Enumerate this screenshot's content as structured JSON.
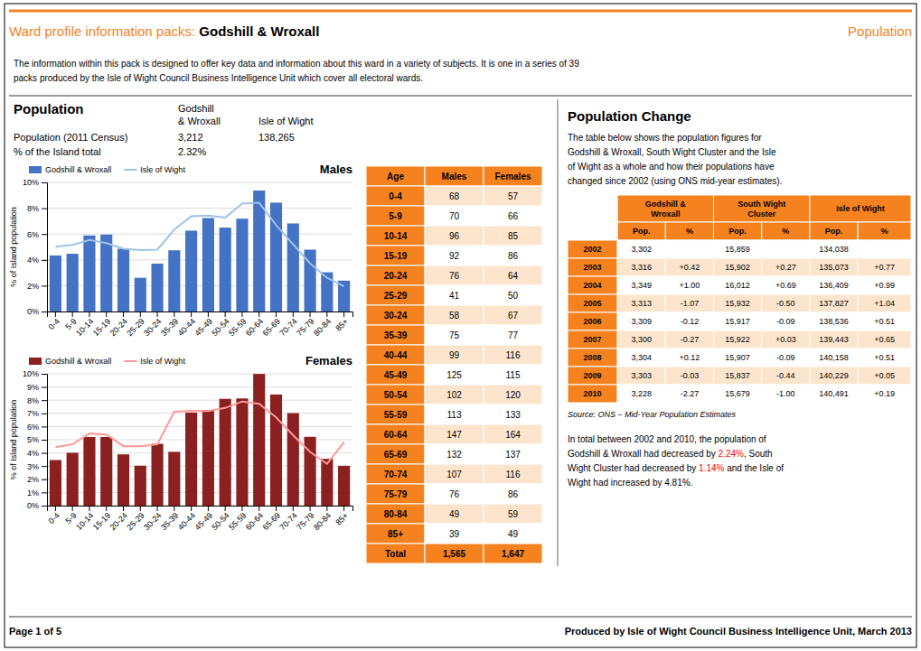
{
  "chart_data": [
    {
      "type": "bar",
      "title": "Males",
      "ylabel": "% of Island population",
      "categories": [
        "0-4",
        "5-9",
        "10-14",
        "15-19",
        "20-24",
        "25-29",
        "30-24",
        "35-39",
        "40-44",
        "45-49",
        "50-54",
        "55-59",
        "60-64",
        "65-69",
        "70-74",
        "75-79",
        "80-84",
        "85+"
      ],
      "series": [
        {
          "name": "Godshill & Wroxall",
          "type": "bar",
          "color": "#4472C4",
          "values": [
            4.34,
            4.47,
            5.89,
            5.96,
            4.86,
            2.61,
            3.71,
            4.74,
            6.26,
            7.24,
            6.5,
            7.19,
            9.37,
            8.43,
            6.82,
            4.79,
            3.04,
            2.39
          ]
        },
        {
          "name": "Isle of Wight",
          "type": "line",
          "color": "#9DC3E6",
          "values": [
            5.02,
            5.16,
            5.54,
            5.3,
            4.86,
            4.76,
            4.79,
            6.34,
            7.38,
            7.43,
            7.27,
            8.35,
            8.42,
            6.69,
            5.21,
            3.73,
            2.61,
            1.95
          ]
        }
      ],
      "ylim": [
        0,
        10
      ],
      "yticks": [
        {
          "value": 0,
          "label": "0%"
        },
        {
          "value": 2,
          "label": "2%"
        },
        {
          "value": 4,
          "label": "4%"
        },
        {
          "value": 6,
          "label": "6%"
        },
        {
          "value": 8,
          "label": "8%"
        },
        {
          "value": 10,
          "label": "10%"
        }
      ],
      "grid": true,
      "legend": "upper left"
    },
    {
      "type": "bar",
      "title": "Females",
      "ylabel": "% of Island population",
      "categories": [
        "0-4",
        "5-9",
        "10-14",
        "15-19",
        "20-24",
        "25-29",
        "30-24",
        "35-39",
        "40-44",
        "45-49",
        "50-54",
        "55-59",
        "60-64",
        "65-69",
        "70-74",
        "75-79",
        "80-84",
        "85+"
      ],
      "series": [
        {
          "name": "Godshill & Wroxall",
          "type": "bar",
          "color": "#8B2020",
          "values": [
            3.46,
            4.01,
            5.21,
            5.21,
            3.89,
            3.03,
            4.69,
            4.08,
            7.06,
            7.26,
            8.1,
            8.13,
            9.99,
            8.43,
            7.02,
            5.22,
            3.55,
            3.02
          ]
        },
        {
          "name": "Isle of Wight",
          "type": "line",
          "color": "#FF9999",
          "values": [
            4.44,
            4.65,
            5.47,
            5.4,
            4.51,
            4.51,
            4.65,
            7.12,
            7.19,
            7.17,
            7.41,
            7.9,
            7.73,
            6.69,
            5.34,
            4.07,
            3.17,
            4.82
          ]
        }
      ],
      "ylim": [
        0,
        10
      ],
      "yticks": [
        {
          "value": 0,
          "label": "0%"
        },
        {
          "value": 1,
          "label": "1%"
        },
        {
          "value": 2,
          "label": "2%"
        },
        {
          "value": 3,
          "label": "3%"
        },
        {
          "value": 4,
          "label": "4%"
        },
        {
          "value": 5,
          "label": "5%"
        },
        {
          "value": 6,
          "label": "6%"
        },
        {
          "value": 7,
          "label": "7%"
        },
        {
          "value": 8,
          "label": "8%"
        },
        {
          "value": 9,
          "label": "9%"
        },
        {
          "value": 10,
          "label": "10%"
        }
      ],
      "grid": true,
      "legend": "upper left"
    }
  ],
  "colors": {
    "accent": "#F5821F",
    "row": "#FCE5CC"
  },
  "header": {
    "prefix": "Ward profile information packs: ",
    "main": "Godshill & Wroxall",
    "right": "Population"
  },
  "intro_text": [
    "The information within this pack is designed to offer key data and information about this ward in a variety of subjects. It is one in a series of 39",
    "packs produced by the Isle of Wight Council Business Intelligence Unit which cover all electoral wards."
  ],
  "population_info": {
    "title": "Population",
    "columns": [
      [
        "Godshill",
        "& Wroxall"
      ],
      [
        "Isle of Wight"
      ]
    ],
    "rows": [
      {
        "label": "Population (2011 Census)",
        "values": [
          {
            "value": 3212,
            "label": "3,212"
          },
          {
            "value": 138265,
            "label": "138,265"
          }
        ]
      },
      {
        "label": "% of the Island total",
        "values": [
          {
            "value": 2.32,
            "label": "2.32%"
          }
        ]
      }
    ]
  },
  "age_table": {
    "columns": [
      "Age",
      "Males",
      "Females"
    ],
    "ages": [
      "0-4",
      "5-9",
      "10-14",
      "15-19",
      "20-24",
      "25-29",
      "30-24",
      "35-39",
      "40-44",
      "45-49",
      "50-54",
      "55-59",
      "60-64",
      "65-69",
      "70-74",
      "75-79",
      "80-84",
      "85+",
      "Total"
    ],
    "males": [
      68,
      70,
      96,
      92,
      76,
      41,
      58,
      75,
      99,
      125,
      102,
      113,
      147,
      132,
      107,
      76,
      49,
      39,
      {
        "value": 1565,
        "label": "1,565"
      }
    ],
    "females": [
      57,
      66,
      85,
      86,
      64,
      50,
      67,
      77,
      116,
      115,
      120,
      133,
      164,
      137,
      116,
      86,
      59,
      49,
      {
        "value": 1647,
        "label": "1,647"
      }
    ]
  },
  "population_change": {
    "title": "Population Change",
    "text": [
      "The table below shows the population figures for",
      "Godshill & Wroxall, South Wight Cluster and the Isle",
      "of Wight as a whole and how their populations have",
      "changed since 2002 (using ONS mid-year estimates)."
    ],
    "groups": [
      [
        "Godshill &",
        "Wroxall"
      ],
      [
        "South Wight",
        "Cluster"
      ],
      [
        "Isle of Wight"
      ]
    ],
    "subheaders": [
      "Pop.",
      "%"
    ],
    "years": [
      "2002",
      "2003",
      "2004",
      "2005",
      "2006",
      "2007",
      "2008",
      "2009",
      "2010"
    ],
    "values": [
      {
        "pop": [
          {
            "value": 3302,
            "label": "3,302"
          },
          {
            "value": 3316,
            "label": "3,316"
          },
          {
            "value": 3349,
            "label": "3,349"
          },
          {
            "value": 3313,
            "label": "3,313"
          },
          {
            "value": 3309,
            "label": "3,309"
          },
          {
            "value": 3300,
            "label": "3,300"
          },
          {
            "value": 3304,
            "label": "3,304"
          },
          {
            "value": 3303,
            "label": "3,303"
          },
          {
            "value": 3228,
            "label": "3,228"
          }
        ],
        "pct": [
          null,
          {
            "value": 0.42,
            "label": "+0.42"
          },
          {
            "value": 1.0,
            "label": "+1.00"
          },
          {
            "value": -1.07,
            "label": "-1.07"
          },
          {
            "value": -0.12,
            "label": "-0.12"
          },
          {
            "value": -0.27,
            "label": "-0.27"
          },
          {
            "value": 0.12,
            "label": "+0.12"
          },
          {
            "value": -0.03,
            "label": "-0.03"
          },
          {
            "value": -2.27,
            "label": "-2.27"
          }
        ]
      },
      {
        "pop": [
          {
            "value": 15859,
            "label": "15,859"
          },
          {
            "value": 15902,
            "label": "15,902"
          },
          {
            "value": 16012,
            "label": "16,012"
          },
          {
            "value": 15932,
            "label": "15,932"
          },
          {
            "value": 15917,
            "label": "15,917"
          },
          {
            "value": 15922,
            "label": "15,922"
          },
          {
            "value": 15907,
            "label": "15,907"
          },
          {
            "value": 15837,
            "label": "15,837"
          },
          {
            "value": 15679,
            "label": "15,679"
          }
        ],
        "pct": [
          null,
          {
            "value": 0.27,
            "label": "+0.27"
          },
          {
            "value": 0.69,
            "label": "+0.69"
          },
          {
            "value": -0.5,
            "label": "-0.50"
          },
          {
            "value": -0.09,
            "label": "-0.09"
          },
          {
            "value": 0.03,
            "label": "+0.03"
          },
          {
            "value": -0.09,
            "label": "-0.09"
          },
          {
            "value": -0.44,
            "label": "-0.44"
          },
          {
            "value": -1.0,
            "label": "-1.00"
          }
        ]
      },
      {
        "pop": [
          {
            "value": 134038,
            "label": "134,038"
          },
          {
            "value": 135073,
            "label": "135,073"
          },
          {
            "value": 136409,
            "label": "136,409"
          },
          {
            "value": 137827,
            "label": "137,827"
          },
          {
            "value": 138536,
            "label": "138,536"
          },
          {
            "value": 139443,
            "label": "139,443"
          },
          {
            "value": 140158,
            "label": "140,158"
          },
          {
            "value": 140229,
            "label": "140,229"
          },
          {
            "value": 140491,
            "label": "140,491"
          }
        ],
        "pct": [
          null,
          {
            "value": 0.77,
            "label": "+0.77"
          },
          {
            "value": 0.99,
            "label": "+0.99"
          },
          {
            "value": 1.04,
            "label": "+1.04"
          },
          {
            "value": 0.51,
            "label": "+0.51"
          },
          {
            "value": 0.65,
            "label": "+0.65"
          },
          {
            "value": 0.51,
            "label": "+0.51"
          },
          {
            "value": 0.05,
            "label": "+0.05"
          },
          {
            "value": 0.19,
            "label": "+0.19"
          }
        ]
      }
    ],
    "source": "Source: ONS – Mid-Year Population Estimates",
    "summary": [
      [
        {
          "text": "In total between 2002 and 2010, the population of"
        }
      ],
      [
        {
          "text": "Godshill & Wroxall had decreased by "
        },
        {
          "text": "2.24%",
          "color": "red"
        },
        {
          "text": ", South"
        }
      ],
      [
        {
          "text": "Wight Cluster had decreased by "
        },
        {
          "text": "1.14%",
          "color": "red"
        },
        {
          "text": " and the Isle of"
        }
      ],
      [
        {
          "text": "Wight had increased by 4.81%."
        }
      ]
    ]
  },
  "footer": {
    "left": "Page 1 of 5",
    "right": "Produced by Isle of Wight Council Business Intelligence Unit, March 2013"
  }
}
